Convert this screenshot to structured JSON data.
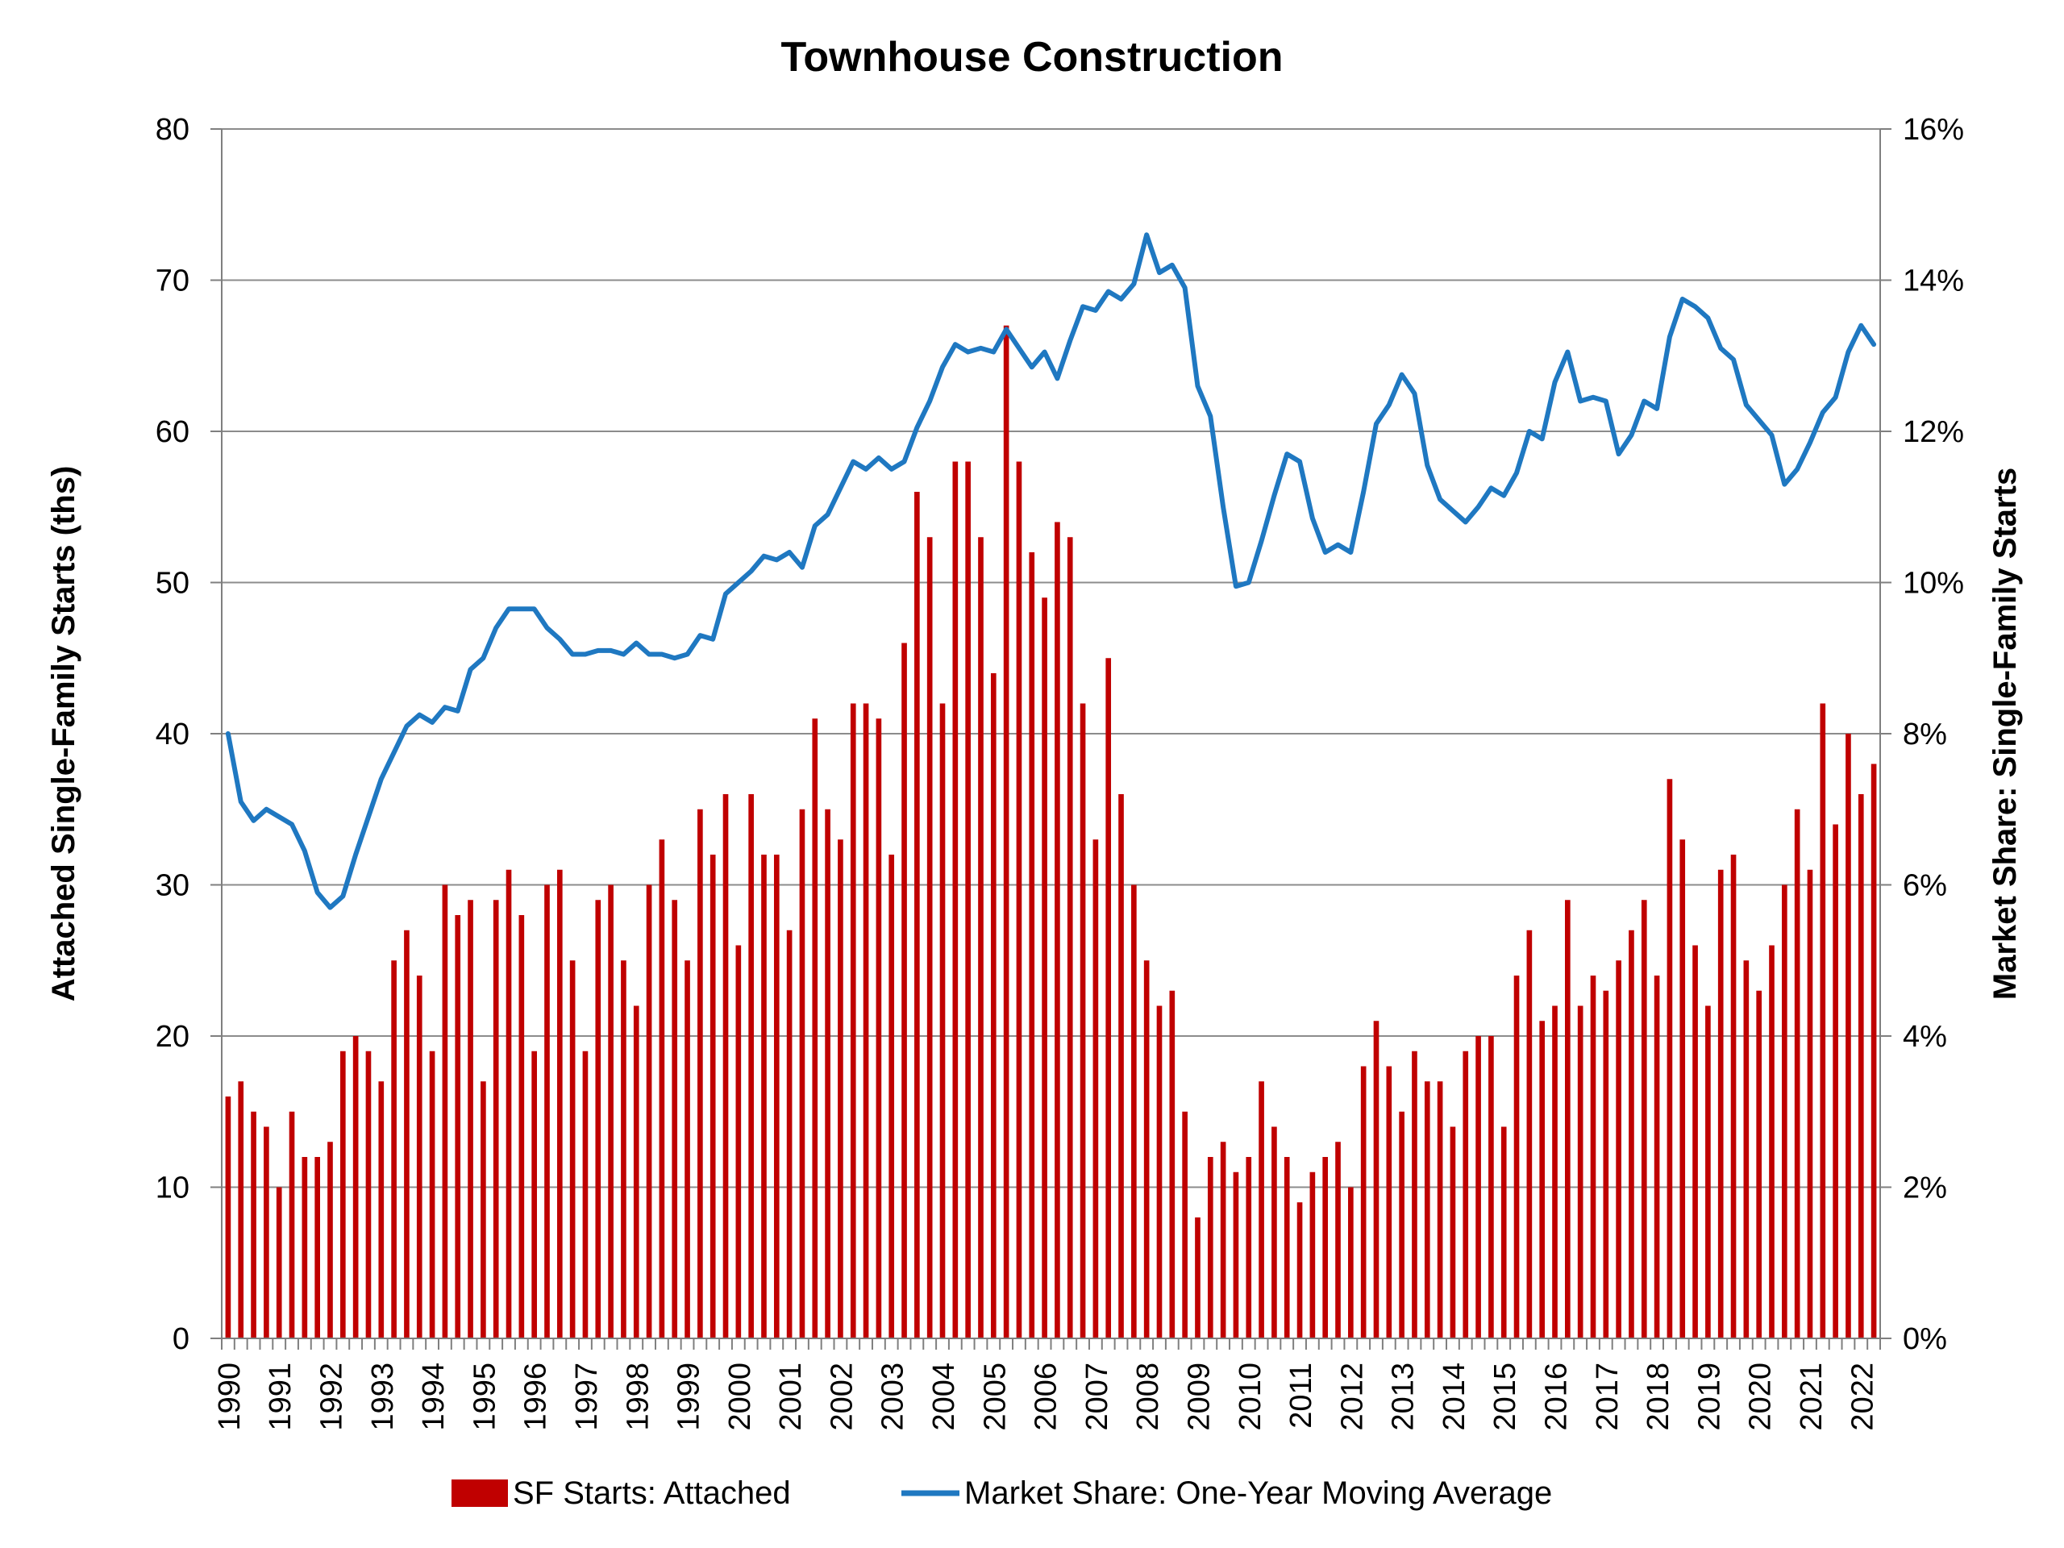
{
  "chart_data": {
    "type": "bar+line",
    "title": "Townhouse Construction",
    "ylabel_left": "Attached Single-Family Starts (ths)",
    "ylabel_right": "Market Share: Single-Family Starts",
    "ylim_left": [
      0,
      80
    ],
    "ylim_right": [
      0,
      16
    ],
    "yticks_left": [
      "0",
      "10",
      "20",
      "30",
      "40",
      "50",
      "60",
      "70",
      "80"
    ],
    "yticks_right": [
      "0%",
      "2%",
      "4%",
      "6%",
      "8%",
      "10%",
      "12%",
      "14%",
      "16%"
    ],
    "x_tick_labels": [
      "1990",
      "1991",
      "1992",
      "1993",
      "1994",
      "1995",
      "1996",
      "1997",
      "1998",
      "1999",
      "2000",
      "2001",
      "2002",
      "2003",
      "2004",
      "2005",
      "2006",
      "2007",
      "2008",
      "2009",
      "2010",
      "2011",
      "2012",
      "2013",
      "2014",
      "2015",
      "2016",
      "2017",
      "2018",
      "2019",
      "2020",
      "2021",
      "2022"
    ],
    "quarters_per_year": 4,
    "grid": true,
    "legend_position": "bottom",
    "series": [
      {
        "name": "SF Starts: Attached",
        "type": "bar",
        "axis": "left",
        "color": "#C00000",
        "values": [
          16,
          17,
          15,
          14,
          10,
          15,
          12,
          12,
          13,
          19,
          20,
          19,
          17,
          25,
          27,
          24,
          19,
          30,
          28,
          29,
          17,
          29,
          31,
          28,
          19,
          30,
          31,
          25,
          19,
          29,
          30,
          25,
          22,
          30,
          33,
          29,
          25,
          35,
          32,
          36,
          26,
          36,
          32,
          32,
          27,
          35,
          41,
          35,
          33,
          42,
          42,
          41,
          32,
          46,
          56,
          53,
          42,
          58,
          58,
          53,
          44,
          67,
          58,
          52,
          49,
          54,
          53,
          42,
          33,
          45,
          36,
          30,
          25,
          22,
          23,
          15,
          8,
          12,
          13,
          11,
          12,
          17,
          14,
          12,
          9,
          11,
          12,
          13,
          10,
          18,
          21,
          18,
          15,
          19,
          17,
          17,
          14,
          19,
          20,
          20,
          14,
          24,
          27,
          21,
          22,
          29,
          22,
          24,
          23,
          25,
          27,
          29,
          24,
          37,
          33,
          26,
          22,
          31,
          32,
          25,
          23,
          26,
          30,
          35,
          31,
          42,
          34,
          40,
          36,
          38
        ]
      },
      {
        "name": "Market Share: One-Year Moving Average",
        "type": "line",
        "axis": "right",
        "color": "#1F78C1",
        "values": [
          8.0,
          7.1,
          6.85,
          7.0,
          6.9,
          6.8,
          6.45,
          5.9,
          5.7,
          5.85,
          6.4,
          6.9,
          7.4,
          7.75,
          8.1,
          8.25,
          8.15,
          8.35,
          8.3,
          8.85,
          9.0,
          9.4,
          9.65,
          9.65,
          9.65,
          9.4,
          9.25,
          9.05,
          9.05,
          9.1,
          9.1,
          9.05,
          9.2,
          9.05,
          9.05,
          9.0,
          9.05,
          9.3,
          9.25,
          9.85,
          10.0,
          10.15,
          10.35,
          10.3,
          10.4,
          10.2,
          10.75,
          10.9,
          11.25,
          11.6,
          11.5,
          11.65,
          11.5,
          11.6,
          12.05,
          12.4,
          12.85,
          13.15,
          13.05,
          13.1,
          13.05,
          13.35,
          13.1,
          12.85,
          13.05,
          12.7,
          13.2,
          13.65,
          13.6,
          13.85,
          13.75,
          13.95,
          14.6,
          14.1,
          14.2,
          13.9,
          12.6,
          12.2,
          11.0,
          9.95,
          10.0,
          10.55,
          11.15,
          11.7,
          11.6,
          10.85,
          10.4,
          10.5,
          10.4,
          11.2,
          12.1,
          12.35,
          12.75,
          12.5,
          11.55,
          11.1,
          10.95,
          10.8,
          11.0,
          11.25,
          11.15,
          11.45,
          12.0,
          11.9,
          12.65,
          13.05,
          12.4,
          12.45,
          12.4,
          11.7,
          11.95,
          12.4,
          12.3,
          13.25,
          13.75,
          13.65,
          13.5,
          13.1,
          12.95,
          12.35,
          12.15,
          11.95,
          11.3,
          11.5,
          11.85,
          12.25,
          12.45,
          13.05,
          13.4,
          13.15
        ]
      }
    ]
  }
}
